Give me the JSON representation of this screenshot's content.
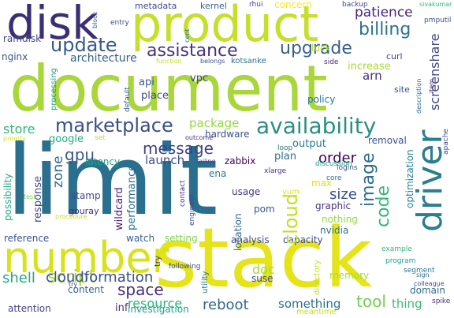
{
  "words": [
    {
      "text": "limit",
      "color": "#2a6f8e"
    },
    {
      "text": "document",
      "color": "#a9d63a"
    },
    {
      "text": "stack",
      "color": "#e5e41a"
    },
    {
      "text": "product",
      "color": "#c6df2a"
    },
    {
      "text": "disk",
      "color": "#3b2f73"
    },
    {
      "text": "driver",
      "color": "#2b7e8c"
    },
    {
      "text": "number",
      "color": "#d7e219"
    },
    {
      "text": "availability",
      "color": "#2a9080"
    },
    {
      "text": "marketplace",
      "color": "#3c4f8a"
    },
    {
      "text": "update",
      "color": "#375a8c"
    },
    {
      "text": "assistance",
      "color": "#46337e"
    },
    {
      "text": "upgrade",
      "color": "#355f8d"
    },
    {
      "text": "billing",
      "color": "#2b738e"
    },
    {
      "text": "cloud",
      "color": "#c0df25"
    },
    {
      "text": "code",
      "color": "#35b779"
    },
    {
      "text": "image",
      "color": "#2f6c8e"
    },
    {
      "text": "message",
      "color": "#414287"
    },
    {
      "text": "gpu",
      "color": "#39568c"
    },
    {
      "text": "script",
      "color": "#a2da37"
    },
    {
      "text": "space",
      "color": "#472d7b"
    },
    {
      "text": "shell",
      "color": "#23a983"
    },
    {
      "text": "cloudformation",
      "color": "#3c508b"
    },
    {
      "text": "reboot",
      "color": "#30688e"
    },
    {
      "text": "tool",
      "color": "#75d054"
    },
    {
      "text": "patience",
      "color": "#482677"
    },
    {
      "text": "screenshare",
      "color": "#3f4788"
    },
    {
      "text": "order",
      "color": "#440154"
    },
    {
      "text": "store",
      "color": "#31b57b"
    },
    {
      "text": "zone",
      "color": "#31668e"
    },
    {
      "text": "size",
      "color": "#3b518b"
    },
    {
      "text": "resource",
      "color": "#2db27d"
    },
    {
      "text": "launch",
      "color": "#3e4c8a"
    },
    {
      "text": "package",
      "color": "#95d840"
    },
    {
      "text": "architecture",
      "color": "#355e8d"
    },
    {
      "text": "arn",
      "color": "#472a7a"
    },
    {
      "text": "increase",
      "color": "#a5db36"
    },
    {
      "text": "ramdisk",
      "color": "#3f4889"
    },
    {
      "text": "nginx",
      "color": "#3b528b"
    },
    {
      "text": "kernel",
      "color": "#355f8d"
    },
    {
      "text": "metadata",
      "color": "#3e4989"
    },
    {
      "text": "concern",
      "color": "#fde725"
    },
    {
      "text": "luck",
      "color": "#b5de2b"
    },
    {
      "text": "backup",
      "color": "#3f4788"
    },
    {
      "text": "api",
      "color": "#38598c"
    },
    {
      "text": "vpc",
      "color": "#414487"
    },
    {
      "text": "place",
      "color": "#3e4a89"
    },
    {
      "text": "policy",
      "color": "#2a788e"
    },
    {
      "text": "site",
      "color": "#3c4f8a"
    },
    {
      "text": "curl",
      "color": "#424086"
    },
    {
      "text": "side",
      "color": "#472f7d"
    },
    {
      "text": "output",
      "color": "#287d8e"
    },
    {
      "text": "removal",
      "color": "#3a548c"
    },
    {
      "text": "optimization",
      "color": "#26828e"
    },
    {
      "text": "google",
      "color": "#25ab82"
    },
    {
      "text": "latency",
      "color": "#1fa187"
    },
    {
      "text": "hardware",
      "color": "#3b528b"
    },
    {
      "text": "zabbix",
      "color": "#440154"
    },
    {
      "text": "plan",
      "color": "#2d718e"
    },
    {
      "text": "max",
      "color": "#d8e219"
    },
    {
      "text": "response",
      "color": "#3e4a89"
    },
    {
      "text": "possibility",
      "color": "#22a884"
    },
    {
      "text": "performance",
      "color": "#2c728e"
    },
    {
      "text": "wildcard",
      "color": "#482173"
    },
    {
      "text": "stamp",
      "color": "#3e4989"
    },
    {
      "text": "usage",
      "color": "#453781"
    },
    {
      "text": "location",
      "color": "#31688e"
    },
    {
      "text": "pom",
      "color": "#3a538b"
    },
    {
      "text": "graphic",
      "color": "#46327e"
    },
    {
      "text": "nothing",
      "color": "#95d840"
    },
    {
      "text": "capacity",
      "color": "#3e4a89"
    },
    {
      "text": "nvidia",
      "color": "#2c728e"
    },
    {
      "text": "analysis",
      "color": "#3f4889"
    },
    {
      "text": "setting",
      "color": "#84d44b"
    },
    {
      "text": "watch",
      "color": "#355f8d"
    },
    {
      "text": "reference",
      "color": "#3b528b"
    },
    {
      "text": "gouray",
      "color": "#472c7a"
    },
    {
      "text": "doc",
      "color": "#a0da39"
    },
    {
      "text": "suse",
      "color": "#3e4a89"
    },
    {
      "text": "content",
      "color": "#31678e"
    },
    {
      "text": "inf",
      "color": "#46307e"
    },
    {
      "text": "investigation",
      "color": "#1f9e89"
    },
    {
      "text": "something",
      "color": "#2c728e"
    },
    {
      "text": "thing",
      "color": "#3aba76"
    },
    {
      "text": "domain",
      "color": "#2e6e8e"
    },
    {
      "text": "memory",
      "color": "#a8db34"
    },
    {
      "text": "attention",
      "color": "#414487"
    },
    {
      "text": "meantime",
      "color": "#c5e021"
    },
    {
      "text": "spike",
      "color": "#46317e"
    },
    {
      "text": "entry",
      "color": "#3e4a89"
    },
    {
      "text": "rhui",
      "color": "#414487"
    },
    {
      "text": "block",
      "color": "#3b528b"
    },
    {
      "text": "sivakumar",
      "color": "#35b779"
    },
    {
      "text": "pmputil",
      "color": "#3b528b"
    },
    {
      "text": "cent",
      "color": "#31688e"
    },
    {
      "text": "belongs",
      "color": "#3b528b"
    },
    {
      "text": "kotsanke",
      "color": "#2c728e"
    },
    {
      "text": "function",
      "color": "#c2df23"
    },
    {
      "text": "default",
      "color": "#355f8d"
    },
    {
      "text": "processing",
      "color": "#1f988b"
    },
    {
      "text": "description",
      "color": "#2c728e"
    },
    {
      "text": "outcome",
      "color": "#472f7d"
    },
    {
      "text": "set",
      "color": "#c5e021"
    },
    {
      "text": "priority",
      "color": "#d2e21b"
    },
    {
      "text": "test",
      "color": "#7ad151"
    },
    {
      "text": "procedure",
      "color": "#c2df23"
    },
    {
      "text": "failing",
      "color": "#3e4a89"
    },
    {
      "text": "xlarge",
      "color": "#472f7d"
    },
    {
      "text": "ena",
      "color": "#2a788e"
    },
    {
      "text": "yum",
      "color": "#e5e419"
    },
    {
      "text": "core",
      "color": "#2c728e"
    },
    {
      "text": "logins",
      "color": "#3b528b"
    },
    {
      "text": "discussion",
      "color": "#1fa088"
    },
    {
      "text": "loop",
      "color": "#2c728e"
    },
    {
      "text": "sign",
      "color": "#31688e"
    },
    {
      "text": "apache",
      "color": "#3e4a89"
    },
    {
      "text": "engineer",
      "color": "#3e4a89"
    },
    {
      "text": "contact",
      "color": "#472f7d"
    },
    {
      "text": "following",
      "color": "#3e4a89"
    },
    {
      "text": "utility",
      "color": "#2c728e"
    },
    {
      "text": "directory",
      "color": "#c5e021"
    },
    {
      "text": "try",
      "color": "#472f7d"
    },
    {
      "text": "program",
      "color": "#3e4a89"
    },
    {
      "text": "example",
      "color": "#1f9e89"
    },
    {
      "text": "colleague",
      "color": "#35b779"
    },
    {
      "text": "segment",
      "color": "#3b528b"
    },
    {
      "text": "item",
      "color": "#2c728e"
    },
    {
      "text": "bitmak",
      "color": "#46307e"
    }
  ]
}
